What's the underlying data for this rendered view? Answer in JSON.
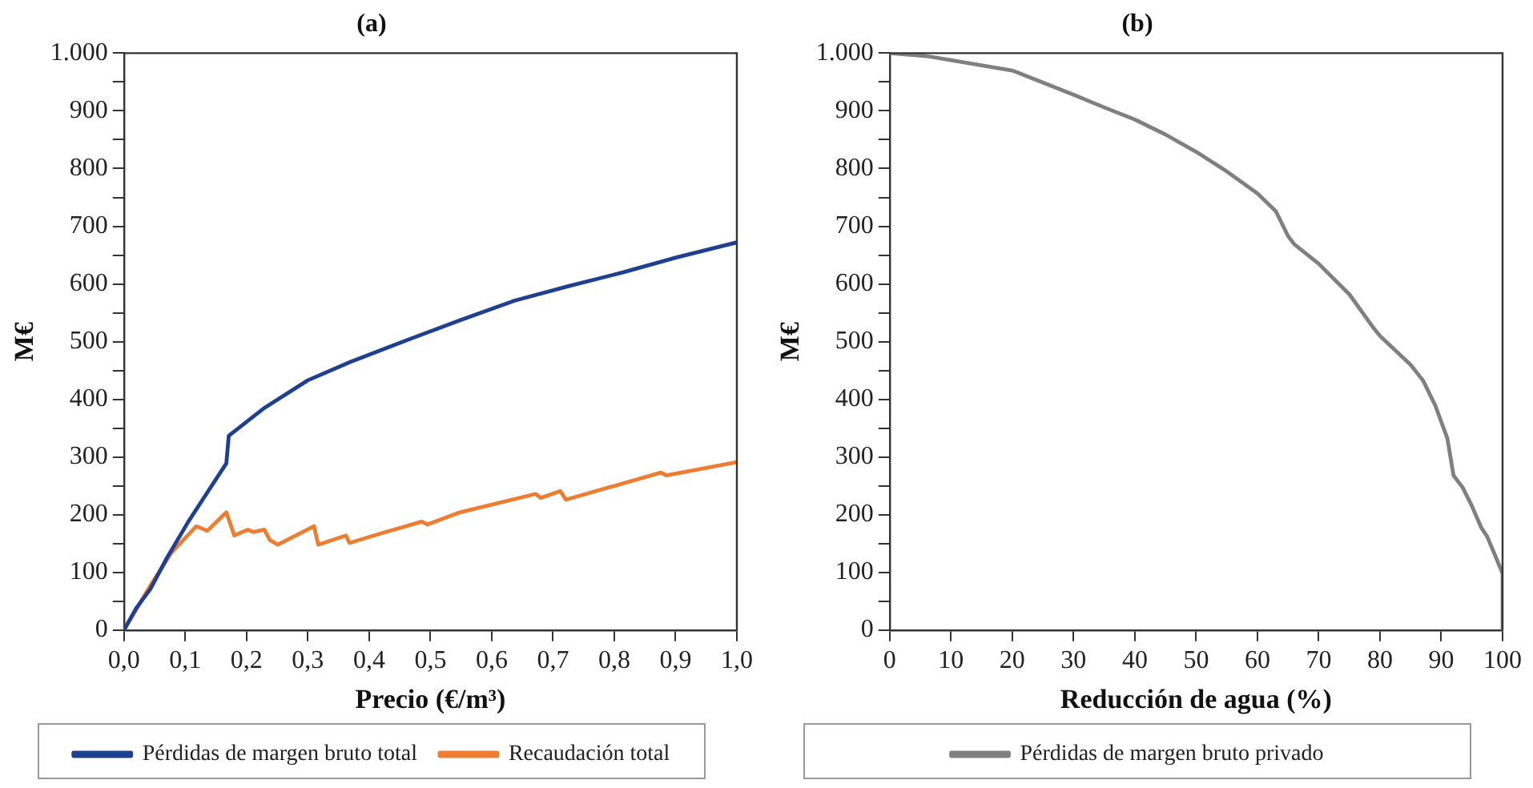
{
  "chart_data": [
    {
      "type": "line",
      "title": "(a)",
      "xlabel": "Precio (€/m³)",
      "ylabel": "M€",
      "legend": "bottom",
      "xlim": [
        0,
        1
      ],
      "xticks": [
        {
          "value": 0,
          "label": "0,0"
        },
        {
          "value": 0.1,
          "label": "0,1"
        },
        {
          "value": 0.2,
          "label": "0,2"
        },
        {
          "value": 0.3,
          "label": "0,3"
        },
        {
          "value": 0.4,
          "label": "0,4"
        },
        {
          "value": 0.5,
          "label": "0,5"
        },
        {
          "value": 0.6,
          "label": "0,6"
        },
        {
          "value": 0.7,
          "label": "0,7"
        },
        {
          "value": 0.8,
          "label": "0,8"
        },
        {
          "value": 0.9,
          "label": "0,9"
        },
        {
          "value": 1,
          "label": "1,0"
        }
      ],
      "ylim": [
        0,
        1000
      ],
      "yticks": [
        0,
        {
          "value": 50,
          "label": null
        },
        100,
        {
          "value": 150,
          "label": null
        },
        200,
        {
          "value": 250,
          "label": null
        },
        300,
        {
          "value": 350,
          "label": null
        },
        400,
        {
          "value": 450,
          "label": null
        },
        500,
        {
          "value": 550,
          "label": null
        },
        600,
        {
          "value": 650,
          "label": null
        },
        700,
        {
          "value": 750,
          "label": null
        },
        800,
        {
          "value": 850,
          "label": null
        },
        900,
        {
          "value": 950,
          "label": null
        },
        {
          "value": 1000,
          "label": "1.000"
        }
      ],
      "series": [
        {
          "name": "Pérdidas de margen bruto total",
          "color": "#1f3f8f",
          "x": [
            0,
            0.02,
            0.043,
            0.07,
            0.105,
            0.167,
            0.171,
            0.229,
            0.3,
            0.37,
            0.46,
            0.548,
            0.637,
            0.725,
            0.814,
            0.902,
            1.0
          ],
          "values": [
            0,
            38,
            71,
            125,
            188,
            289,
            337,
            385,
            433,
            465,
            502,
            537,
            571,
            596,
            620,
            646,
            672
          ]
        },
        {
          "name": "Recaudación total",
          "color": "#ed7d31",
          "x": [
            0,
            0.043,
            0.078,
            0.118,
            0.136,
            0.167,
            0.18,
            0.202,
            0.211,
            0.229,
            0.238,
            0.251,
            0.31,
            0.317,
            0.362,
            0.368,
            0.424,
            0.486,
            0.495,
            0.548,
            0.672,
            0.68,
            0.712,
            0.721,
            0.876,
            0.885,
            1.0
          ],
          "values": [
            0,
            77,
            135,
            180,
            172,
            204,
            164,
            174,
            170,
            174,
            156,
            148,
            180,
            148,
            164,
            151,
            169,
            188,
            183,
            204,
            236,
            229,
            241,
            226,
            273,
            268,
            291
          ]
        }
      ]
    },
    {
      "type": "line",
      "title": "(b)",
      "xlabel": "Reducción de agua (%)",
      "ylabel": "M€",
      "legend": "bottom",
      "xlim": [
        0,
        100
      ],
      "xticks": [
        0,
        10,
        20,
        30,
        40,
        50,
        60,
        70,
        80,
        90,
        100
      ],
      "ylim": [
        0,
        1000
      ],
      "yticks": [
        0,
        {
          "value": 50,
          "label": null
        },
        100,
        {
          "value": 150,
          "label": null
        },
        200,
        {
          "value": 250,
          "label": null
        },
        300,
        {
          "value": 350,
          "label": null
        },
        400,
        {
          "value": 450,
          "label": null
        },
        500,
        {
          "value": 550,
          "label": null
        },
        600,
        {
          "value": 650,
          "label": null
        },
        700,
        {
          "value": 750,
          "label": null
        },
        800,
        {
          "value": 850,
          "label": null
        },
        900,
        {
          "value": 950,
          "label": null
        },
        {
          "value": 1000,
          "label": "1.000"
        }
      ],
      "series": [
        {
          "name": "Pérdidas de margen bruto privado",
          "color": "#808080",
          "x": [
            0,
            6,
            10,
            20,
            30,
            35,
            40,
            45,
            50,
            55,
            60,
            63,
            65,
            66,
            70,
            75,
            79,
            80,
            85,
            87,
            89,
            91,
            92,
            93.5,
            95,
            96.5,
            97.5,
            99,
            100,
            100
          ],
          "values": [
            1000,
            995,
            988,
            970,
            928,
            906,
            885,
            859,
            829,
            795,
            757,
            726,
            683,
            669,
            635,
            582,
            523,
            510,
            460,
            433,
            390,
            332,
            268,
            247,
            215,
            178,
            162,
            124,
            98,
            0
          ]
        }
      ]
    }
  ]
}
